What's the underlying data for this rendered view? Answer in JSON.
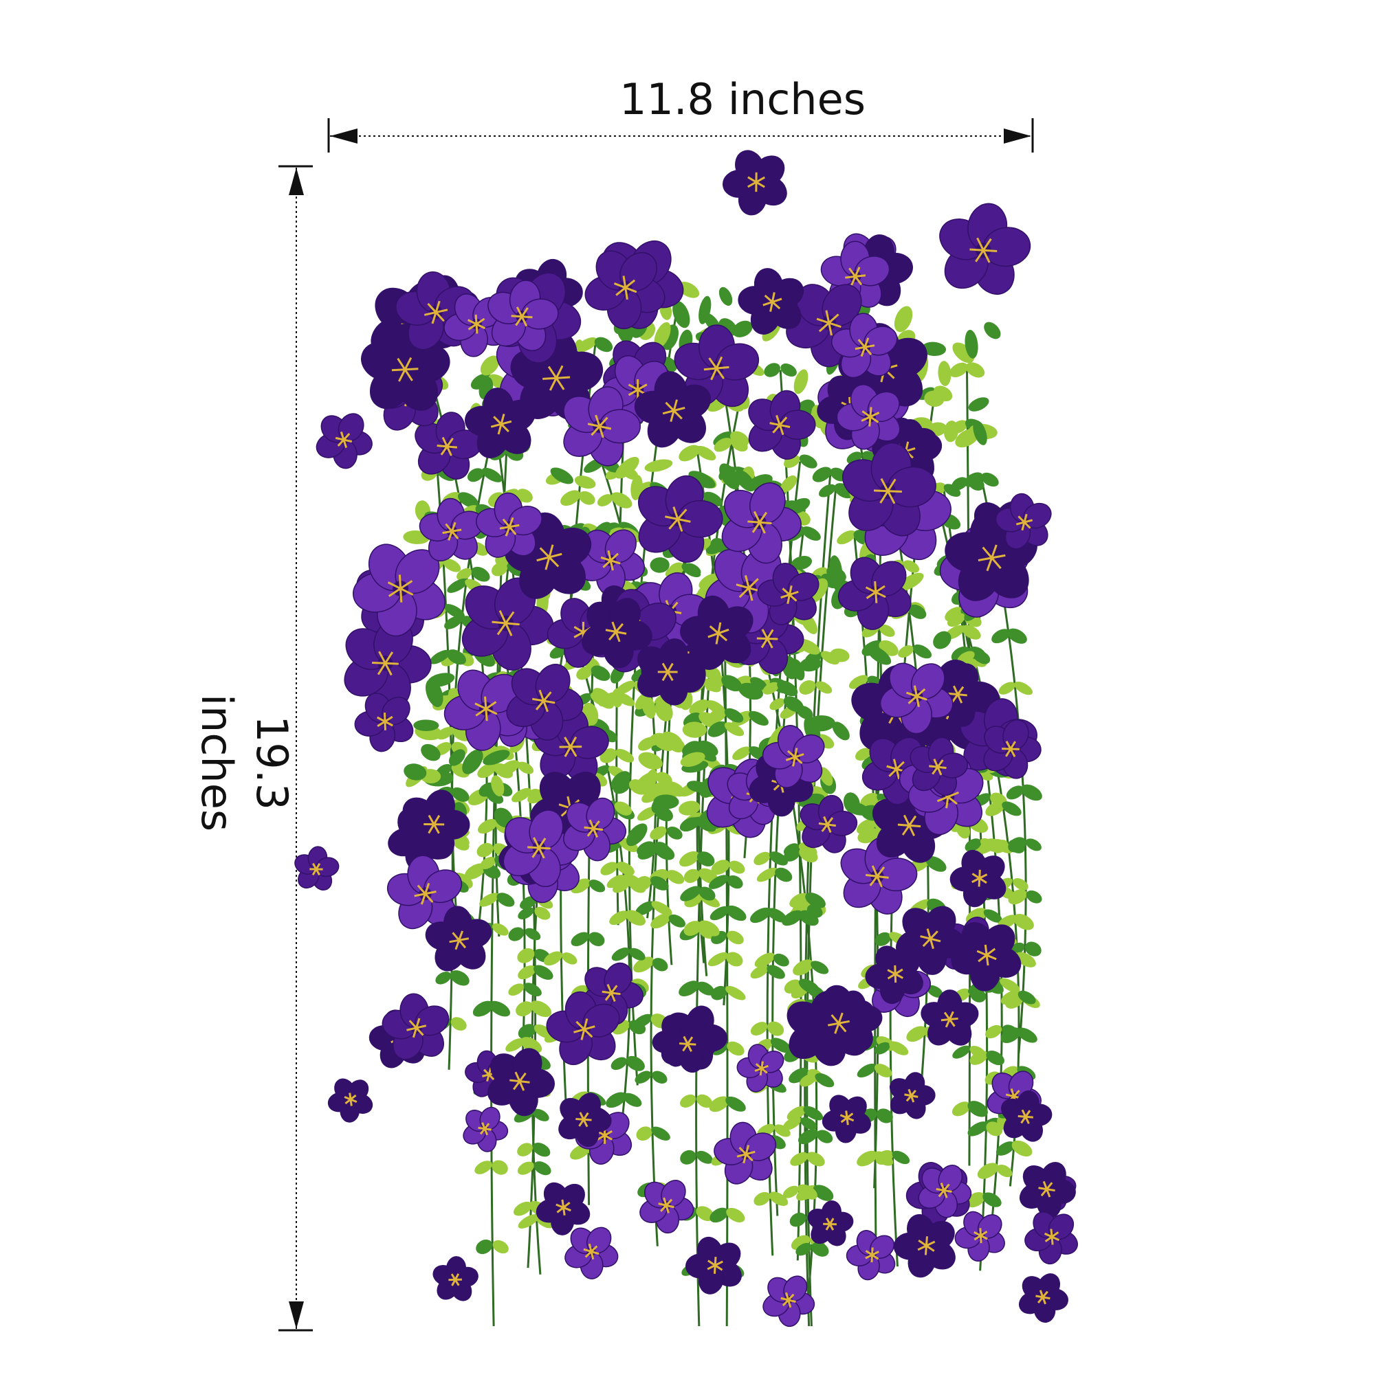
{
  "dimensions": {
    "width_label": "11.8 inches",
    "height_label": "19.3 inches"
  },
  "colors": {
    "petal": "#4b1a8c",
    "petal_light": "#6a2fb3",
    "petal_dark": "#33106a",
    "stamen": "#e0b43a",
    "leaf": "#3f8f2a",
    "leaf_light": "#9ccc3c",
    "stem": "#2f6b22",
    "dimension_line": "#111111"
  }
}
